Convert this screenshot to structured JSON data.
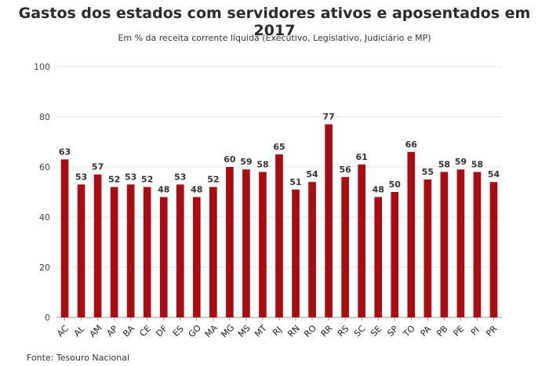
{
  "header": {
    "title": "Gastos dos estados com servidores ativos e aposentados em 2017",
    "subtitle": "Em % da receita corrente líquida (Executivo, Legislativo, Judiciário e MP)"
  },
  "footer": {
    "source": "Fonte: Tesouro Nacional"
  },
  "colors": {
    "bar": "#a80d14"
  },
  "chart_data": {
    "type": "bar",
    "title": "Gastos dos estados com servidores ativos e aposentados em 2017",
    "subtitle": "Em % da receita corrente líquida (Executivo, Legislativo, Judiciário e MP)",
    "categories": [
      "AC",
      "AL",
      "AM",
      "AP",
      "BA",
      "CE",
      "DF",
      "ES",
      "GO",
      "MA",
      "MG",
      "MS",
      "MT",
      "RJ",
      "RN",
      "RO",
      "RR",
      "RS",
      "SC",
      "SE",
      "SP",
      "TO",
      "PA",
      "PB",
      "PE",
      "PI",
      "PR"
    ],
    "values": [
      63,
      53,
      57,
      52,
      53,
      52,
      48,
      53,
      48,
      52,
      60,
      59,
      58,
      65,
      51,
      54,
      77,
      56,
      61,
      48,
      50,
      66,
      55,
      58,
      59,
      58,
      54
    ],
    "ylim": [
      0,
      100
    ],
    "yticks": [
      0,
      20,
      40,
      60,
      80,
      100
    ],
    "xlabel": "",
    "ylabel": "",
    "grid": true,
    "data_labels": true,
    "legend": "none"
  }
}
